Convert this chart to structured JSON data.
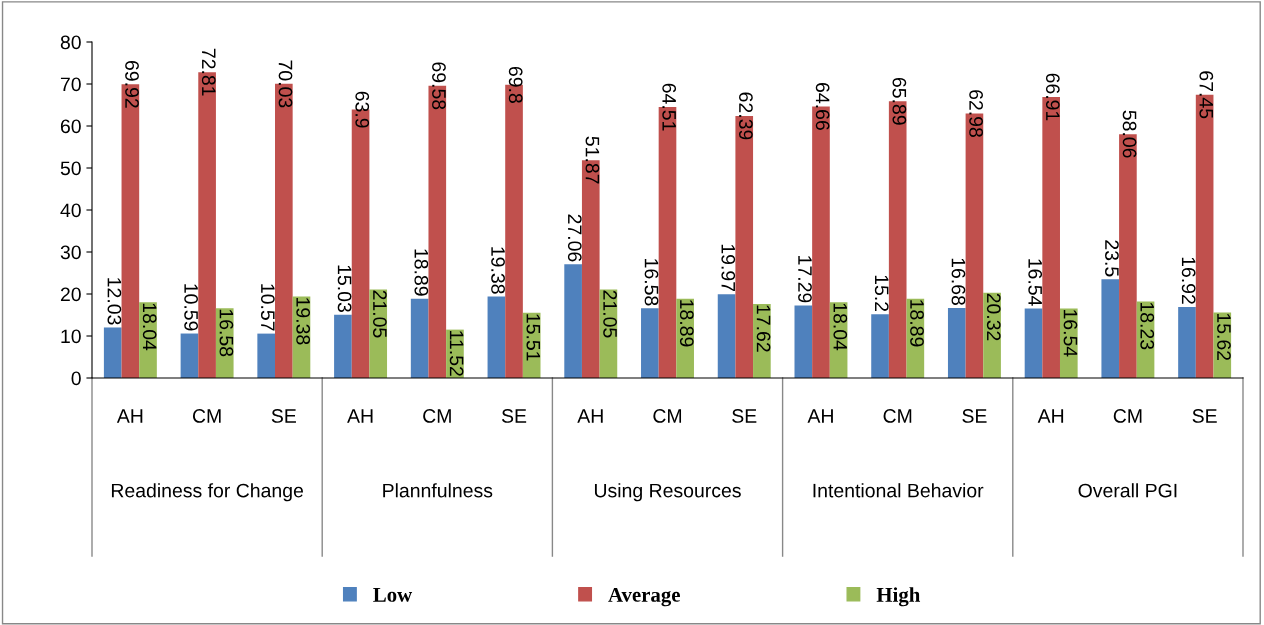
{
  "chart_data": {
    "type": "bar",
    "categories": [
      "AH",
      "CM",
      "SE",
      "AH",
      "CM",
      "SE",
      "AH",
      "CM",
      "SE",
      "AH",
      "CM",
      "SE",
      "AH",
      "CM",
      "SE"
    ],
    "annotations": [
      "Readiness for Change",
      "Plannfulness",
      "Using Resources",
      "Intentional Behavior",
      "Overall PGI"
    ],
    "series": [
      {
        "name": "Low",
        "color": "#4f81bd",
        "values": [
          12.03,
          10.59,
          10.57,
          15.03,
          18.89,
          19.38,
          27.06,
          16.58,
          19.97,
          17.29,
          15.2,
          16.68,
          16.54,
          23.5,
          16.92
        ]
      },
      {
        "name": "Average",
        "color": "#c0504d",
        "values": [
          69.92,
          72.81,
          70.03,
          63.9,
          69.58,
          69.8,
          51.87,
          64.51,
          62.39,
          64.66,
          65.89,
          62.98,
          66.91,
          58.06,
          67.45
        ]
      },
      {
        "name": "High",
        "color": "#9bbb59",
        "values": [
          18.04,
          16.58,
          19.38,
          21.05,
          11.52,
          15.51,
          21.05,
          18.89,
          17.62,
          18.04,
          18.89,
          20.32,
          16.54,
          18.23,
          15.62
        ]
      }
    ],
    "ylim": [
      0,
      80
    ],
    "yticks": [
      0,
      10,
      20,
      30,
      40,
      50,
      60,
      70,
      80
    ],
    "grid": false,
    "legend": "bottom",
    "data_labels": true
  }
}
